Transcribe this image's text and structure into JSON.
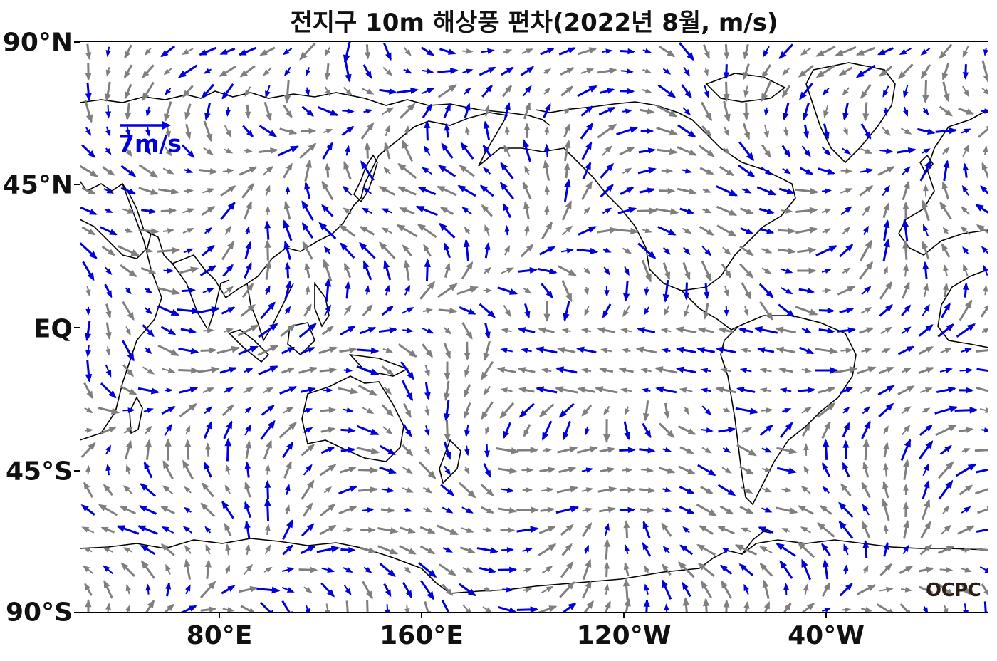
{
  "title": "전지구 10m 해상풍 편차(2022년 8월, m/s)",
  "axes": {
    "y_ticks": [
      "90°N",
      "45°N",
      "EQ",
      "45°S",
      "90°S"
    ],
    "x_ticks": [
      "80°E",
      "160°E",
      "120°W",
      "40°W"
    ]
  },
  "reference_vector": {
    "label": "7m/s",
    "magnitude_ms": 7,
    "color": "#0000dd"
  },
  "logo": "OCPC",
  "colors": {
    "significant": "#0000dd",
    "not_significant": "#7f7f7f",
    "coastline": "#000000"
  },
  "chart_data": {
    "type": "vector-field",
    "title": "전지구 10m 해상풍 편차(2022년 8월, m/s)",
    "projection": "plate-carree",
    "lon_range": [
      25,
      385
    ],
    "lat_range": [
      -90,
      90
    ],
    "grid_spacing_deg": 8,
    "legend": "top-left",
    "unit": "m/s"
  }
}
